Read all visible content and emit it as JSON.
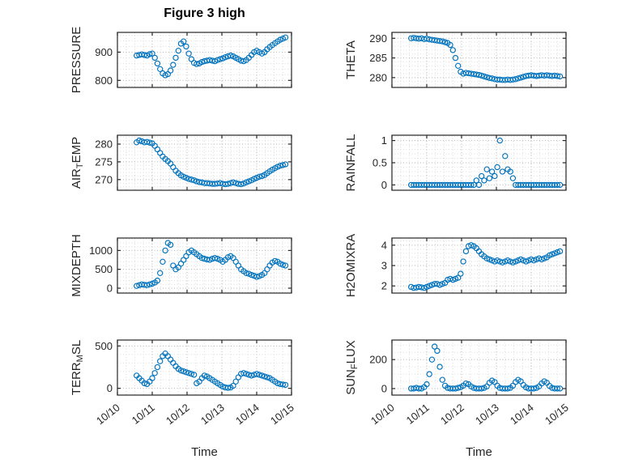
{
  "chart_data": {
    "type": "scatter",
    "title": "Figure 3 high",
    "xlabel": "Time",
    "xlim": [
      0,
      5
    ],
    "xticks": [
      0,
      1,
      2,
      3,
      4,
      5
    ],
    "xtick_labels": [
      "10/10",
      "10/11",
      "10/12",
      "10/13",
      "10/14",
      "10/15"
    ],
    "x_minor_step": 0.25,
    "marker_color": "#0072BD",
    "grid_major_color": "#b3b3b3",
    "grid_minor_color": "#dcdcdc",
    "axis_color": "#262626",
    "legend": "none",
    "grid": "on",
    "x": [
      0.55,
      0.625,
      0.7,
      0.775,
      0.85,
      0.925,
      1.0,
      1.075,
      1.15,
      1.225,
      1.3,
      1.375,
      1.45,
      1.525,
      1.6,
      1.675,
      1.75,
      1.825,
      1.9,
      1.975,
      2.05,
      2.125,
      2.2,
      2.275,
      2.35,
      2.425,
      2.5,
      2.575,
      2.65,
      2.725,
      2.8,
      2.875,
      2.95,
      3.025,
      3.1,
      3.175,
      3.25,
      3.325,
      3.4,
      3.475,
      3.55,
      3.625,
      3.7,
      3.775,
      3.85,
      3.925,
      4.0,
      4.075,
      4.15,
      4.225,
      4.3,
      4.375,
      4.45,
      4.525,
      4.6,
      4.675,
      4.75,
      4.825
    ],
    "subplots": [
      {
        "key": "pressure",
        "ylabel": [
          [
            "t",
            "PRESSURE"
          ]
        ],
        "yticks": [
          800,
          900
        ],
        "ylim": [
          775,
          970
        ],
        "y_minor_step": 20,
        "values": [
          888,
          890,
          892,
          890,
          888,
          893,
          895,
          880,
          860,
          840,
          825,
          818,
          822,
          835,
          855,
          880,
          905,
          930,
          938,
          920,
          895,
          875,
          862,
          858,
          860,
          865,
          868,
          870,
          872,
          870,
          868,
          872,
          875,
          878,
          882,
          885,
          888,
          885,
          880,
          875,
          870,
          868,
          872,
          880,
          890,
          900,
          905,
          900,
          895,
          900,
          910,
          918,
          925,
          932,
          938,
          944,
          948,
          952
        ]
      },
      {
        "key": "theta",
        "ylabel": [
          [
            "t",
            "THETA"
          ]
        ],
        "yticks": [
          280,
          285,
          290
        ],
        "ylim": [
          277.5,
          291.5
        ],
        "y_minor_step": 1,
        "values": [
          290.0,
          290.1,
          290.0,
          289.9,
          290.0,
          289.8,
          289.9,
          289.7,
          289.6,
          289.5,
          289.4,
          289.3,
          289.2,
          289.0,
          288.8,
          288.3,
          287.0,
          285.0,
          283.0,
          281.5,
          281.0,
          281.2,
          281.1,
          281.0,
          280.9,
          280.8,
          280.7,
          280.5,
          280.3,
          280.1,
          279.9,
          279.8,
          279.6,
          279.5,
          279.5,
          279.4,
          279.4,
          279.5,
          279.4,
          279.5,
          279.6,
          279.8,
          280.0,
          280.2,
          280.4,
          280.5,
          280.6,
          280.5,
          280.4,
          280.5,
          280.6,
          280.5,
          280.6,
          280.5,
          280.4,
          280.5,
          280.4,
          280.3
        ]
      },
      {
        "key": "airtemp",
        "ylabel": [
          [
            "t",
            "AIR"
          ],
          [
            "sub",
            "T"
          ],
          [
            "t",
            "EMP"
          ]
        ],
        "yticks": [
          270,
          275,
          280
        ],
        "ylim": [
          267,
          282.5
        ],
        "y_minor_step": 1,
        "values": [
          280.5,
          281,
          280.8,
          280.5,
          280.6,
          280.4,
          280.2,
          279.5,
          278.5,
          277.5,
          276.5,
          275.8,
          275.2,
          274.5,
          273.5,
          272.5,
          271.8,
          271.2,
          270.8,
          270.5,
          270.2,
          270.0,
          269.8,
          269.5,
          269.3,
          269.2,
          269.0,
          269.0,
          268.9,
          268.8,
          268.8,
          268.9,
          269.0,
          268.8,
          268.7,
          268.8,
          269.0,
          269.2,
          269.0,
          268.8,
          268.7,
          268.9,
          269.2,
          269.5,
          269.8,
          270.2,
          270.5,
          270.8,
          271.0,
          271.3,
          271.8,
          272.3,
          272.8,
          273.2,
          273.6,
          273.9,
          274.1,
          274.3
        ]
      },
      {
        "key": "rainfall",
        "ylabel": [
          [
            "t",
            "RAINFALL"
          ]
        ],
        "yticks": [
          0,
          0.5,
          1
        ],
        "ylim": [
          -0.12,
          1.12
        ],
        "y_minor_step": 0.1,
        "values": [
          0,
          0,
          0,
          0,
          0,
          0,
          0,
          0,
          0,
          0,
          0,
          0,
          0,
          0,
          0,
          0,
          0,
          0,
          0,
          0,
          0,
          0,
          0,
          0,
          0,
          0.1,
          0,
          0.2,
          0.1,
          0.35,
          0.15,
          0.3,
          0.2,
          0.4,
          1.0,
          0.3,
          0.65,
          0.35,
          0.3,
          0.15,
          0,
          0,
          0,
          0,
          0,
          0,
          0,
          0,
          0,
          0,
          0,
          0,
          0,
          0,
          0,
          0,
          0,
          0
        ]
      },
      {
        "key": "mixdepth",
        "ylabel": [
          [
            "t",
            "MIXDEPTH"
          ]
        ],
        "yticks": [
          0,
          500,
          1000
        ],
        "ylim": [
          -130,
          1330
        ],
        "y_minor_step": 100,
        "values": [
          60,
          80,
          100,
          90,
          80,
          100,
          120,
          150,
          200,
          400,
          700,
          1000,
          1200,
          1150,
          600,
          500,
          550,
          650,
          750,
          850,
          950,
          1000,
          950,
          900,
          850,
          800,
          780,
          760,
          750,
          780,
          800,
          780,
          750,
          700,
          750,
          820,
          850,
          800,
          700,
          600,
          500,
          450,
          400,
          380,
          350,
          330,
          300,
          320,
          350,
          400,
          500,
          600,
          680,
          720,
          700,
          650,
          620,
          600
        ]
      },
      {
        "key": "h2omixra",
        "ylabel": [
          [
            "t",
            "H2OMIXRA"
          ]
        ],
        "yticks": [
          2,
          3,
          4
        ],
        "ylim": [
          1.65,
          4.35
        ],
        "y_minor_step": 0.2,
        "values": [
          1.95,
          1.9,
          1.92,
          1.95,
          1.93,
          1.9,
          1.95,
          2.0,
          2.05,
          2.1,
          2.1,
          2.05,
          2.1,
          2.15,
          2.3,
          2.35,
          2.3,
          2.35,
          2.4,
          2.6,
          3.2,
          3.7,
          3.95,
          4.0,
          3.95,
          3.85,
          3.7,
          3.55,
          3.45,
          3.35,
          3.3,
          3.25,
          3.2,
          3.25,
          3.2,
          3.15,
          3.2,
          3.25,
          3.2,
          3.15,
          3.2,
          3.25,
          3.3,
          3.25,
          3.2,
          3.25,
          3.3,
          3.25,
          3.3,
          3.35,
          3.3,
          3.35,
          3.4,
          3.5,
          3.55,
          3.6,
          3.65,
          3.7
        ]
      },
      {
        "key": "terrmsl",
        "ylabel": [
          [
            "t",
            "TERR"
          ],
          [
            "sub",
            "M"
          ],
          [
            "t",
            "SL"
          ]
        ],
        "yticks": [
          0,
          500
        ],
        "ylim": [
          -80,
          570
        ],
        "y_minor_step": 100,
        "values": [
          150,
          120,
          90,
          60,
          50,
          80,
          120,
          180,
          250,
          320,
          380,
          410,
          380,
          340,
          300,
          260,
          230,
          210,
          200,
          190,
          180,
          170,
          160,
          60,
          80,
          120,
          150,
          140,
          120,
          100,
          80,
          60,
          40,
          20,
          10,
          5,
          10,
          30,
          80,
          130,
          170,
          180,
          170,
          160,
          150,
          160,
          170,
          160,
          150,
          140,
          130,
          120,
          100,
          80,
          60,
          50,
          45,
          40
        ]
      },
      {
        "key": "sunflux",
        "ylabel": [
          [
            "t",
            "SUN"
          ],
          [
            "sub",
            "F"
          ],
          [
            "t",
            "LUX"
          ]
        ],
        "yticks": [
          0,
          200
        ],
        "ylim": [
          -45,
          335
        ],
        "y_minor_step": 50,
        "values": [
          0,
          0,
          5,
          0,
          0,
          10,
          30,
          100,
          200,
          290,
          260,
          150,
          60,
          20,
          5,
          0,
          0,
          0,
          5,
          10,
          20,
          35,
          30,
          15,
          5,
          0,
          0,
          0,
          5,
          15,
          40,
          55,
          45,
          20,
          5,
          0,
          0,
          0,
          5,
          20,
          45,
          60,
          50,
          25,
          8,
          0,
          0,
          0,
          5,
          15,
          35,
          50,
          40,
          18,
          5,
          0,
          0,
          0
        ]
      }
    ]
  }
}
